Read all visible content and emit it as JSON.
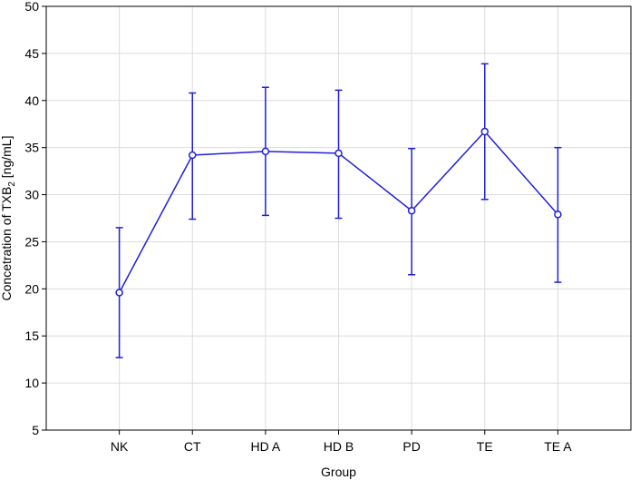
{
  "chart_data": {
    "type": "line",
    "title": "",
    "xlabel": "Group",
    "ylabel_parts": {
      "before": "Concetration of TXB",
      "subscript": "2",
      "after": " [ng/mL]"
    },
    "categories": [
      "NK",
      "CT",
      "HD A",
      "HD B",
      "PD",
      "TE",
      "TE A"
    ],
    "series": [
      {
        "values": [
          19.6,
          34.2,
          34.6,
          34.4,
          28.3,
          36.7,
          27.9
        ],
        "error_low": [
          12.7,
          27.4,
          27.8,
          27.5,
          21.5,
          29.5,
          20.7
        ],
        "error_high": [
          26.5,
          40.8,
          41.4,
          41.1,
          34.9,
          43.9,
          35.0
        ],
        "color": "#1f1fdd"
      }
    ],
    "yticks": [
      5,
      10,
      15,
      20,
      25,
      30,
      35,
      40,
      45,
      50
    ],
    "ylim": [
      5,
      50
    ],
    "grid": true,
    "legend": "none"
  }
}
